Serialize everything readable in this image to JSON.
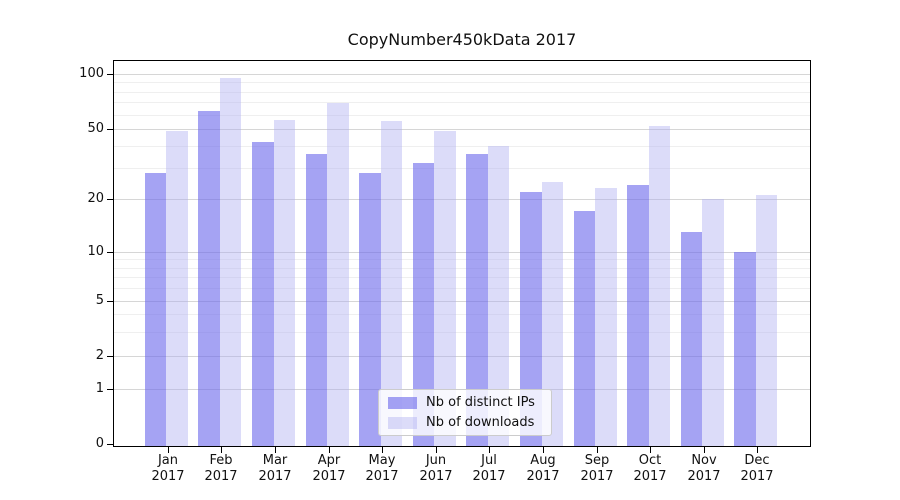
{
  "chart_data": {
    "type": "bar",
    "title": "CopyNumber450kData 2017",
    "categories": [
      "Jan",
      "Feb",
      "Mar",
      "Apr",
      "May",
      "Jun",
      "Jul",
      "Aug",
      "Sep",
      "Oct",
      "Nov",
      "Dec"
    ],
    "x_tick_second_line": "2017",
    "series": [
      {
        "name": "Nb of distinct IPs",
        "color": "#6e6bec",
        "fill_alpha": 0.62,
        "values": [
          28,
          63,
          42,
          36,
          28,
          32,
          36,
          22,
          17,
          24,
          13,
          10
        ]
      },
      {
        "name": "Nb of downloads",
        "color": "#acacf1",
        "fill_alpha": 0.42,
        "values": [
          49,
          95,
          56,
          69,
          55,
          49,
          40,
          25,
          23,
          52,
          20,
          21
        ]
      }
    ],
    "y_axis": {
      "scale": "symlog",
      "ticks": [
        0,
        1,
        2,
        5,
        10,
        20,
        50,
        100
      ],
      "minor_gridlines": [
        3,
        4,
        6,
        7,
        8,
        9,
        30,
        40,
        60,
        70,
        80,
        90
      ],
      "range": [
        0,
        120
      ]
    },
    "grid": "horizontal major + log minor gridlines",
    "legend_position": "lower center"
  }
}
